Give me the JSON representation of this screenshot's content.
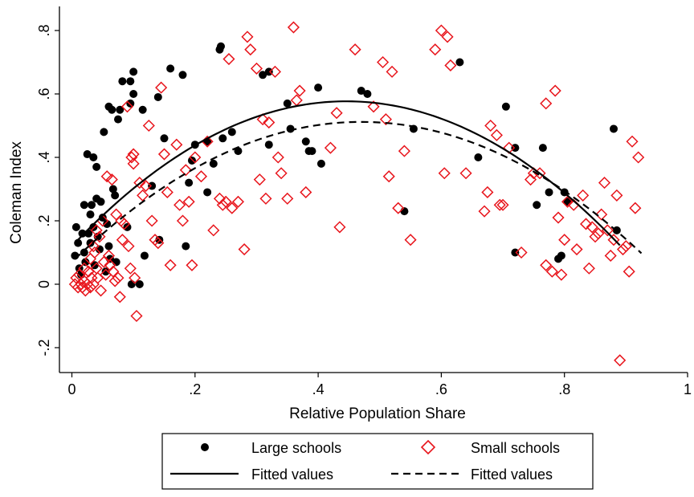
{
  "chart_data": {
    "type": "scatter",
    "xlabel": "Relative Population Share",
    "ylabel": "Coleman Index",
    "xlim": [
      0,
      1
    ],
    "ylim": [
      -0.26,
      0.86
    ],
    "x_ticks": [
      {
        "value": 0,
        "label": "0"
      },
      {
        "value": 0.2,
        "label": ".2"
      },
      {
        "value": 0.4,
        "label": ".4"
      },
      {
        "value": 0.6,
        "label": ".6"
      },
      {
        "value": 0.8,
        "label": ".8"
      },
      {
        "value": 1,
        "label": "1"
      }
    ],
    "y_ticks": [
      {
        "value": -0.2,
        "label": "-.2"
      },
      {
        "value": 0,
        "label": "0"
      },
      {
        "value": 0.2,
        "label": ".2"
      },
      {
        "value": 0.4,
        "label": ".4"
      },
      {
        "value": 0.6,
        "label": ".6"
      },
      {
        "value": 0.8,
        "label": ".8"
      }
    ],
    "grid": false,
    "legend_position": "bottom",
    "legend": {
      "large_label": "Large schools",
      "small_label": "Small schools",
      "fit_large_label": "Fitted values",
      "fit_small_label": "Fitted values"
    },
    "series": [
      {
        "name": "Large schools",
        "marker": "filled-circle",
        "color": "#000000",
        "points": [
          [
            0.005,
            0.09
          ],
          [
            0.007,
            0.18
          ],
          [
            0.01,
            0.13
          ],
          [
            0.012,
            0.05
          ],
          [
            0.015,
            0.03
          ],
          [
            0.017,
            0.16
          ],
          [
            0.02,
            0.25
          ],
          [
            0.02,
            0.1
          ],
          [
            0.022,
            0.07
          ],
          [
            0.025,
            0.41
          ],
          [
            0.027,
            0.16
          ],
          [
            0.03,
            0.22
          ],
          [
            0.03,
            0.13
          ],
          [
            0.032,
            0.25
          ],
          [
            0.035,
            0.4
          ],
          [
            0.035,
            0.18
          ],
          [
            0.037,
            0.06
          ],
          [
            0.04,
            0.37
          ],
          [
            0.04,
            0.27
          ],
          [
            0.042,
            0.15
          ],
          [
            0.045,
            0.11
          ],
          [
            0.047,
            0.26
          ],
          [
            0.05,
            0.21
          ],
          [
            0.052,
            0.48
          ],
          [
            0.055,
            0.04
          ],
          [
            0.057,
            0.19
          ],
          [
            0.06,
            0.56
          ],
          [
            0.06,
            0.12
          ],
          [
            0.062,
            0.08
          ],
          [
            0.065,
            0.55
          ],
          [
            0.067,
            0.3
          ],
          [
            0.07,
            0.28
          ],
          [
            0.072,
            0.07
          ],
          [
            0.075,
            0.52
          ],
          [
            0.078,
            0.55
          ],
          [
            0.082,
            0.64
          ],
          [
            0.09,
            0.18
          ],
          [
            0.095,
            0.64
          ],
          [
            0.095,
            0.57
          ],
          [
            0.097,
            0.0
          ],
          [
            0.1,
            0.67
          ],
          [
            0.1,
            0.6
          ],
          [
            0.11,
            0.0
          ],
          [
            0.115,
            0.55
          ],
          [
            0.118,
            0.09
          ],
          [
            0.13,
            0.31
          ],
          [
            0.14,
            0.59
          ],
          [
            0.142,
            0.14
          ],
          [
            0.15,
            0.46
          ],
          [
            0.16,
            0.68
          ],
          [
            0.18,
            0.66
          ],
          [
            0.185,
            0.12
          ],
          [
            0.19,
            0.32
          ],
          [
            0.195,
            0.39
          ],
          [
            0.2,
            0.44
          ],
          [
            0.22,
            0.45
          ],
          [
            0.22,
            0.29
          ],
          [
            0.23,
            0.38
          ],
          [
            0.24,
            0.74
          ],
          [
            0.242,
            0.75
          ],
          [
            0.245,
            0.46
          ],
          [
            0.26,
            0.48
          ],
          [
            0.27,
            0.42
          ],
          [
            0.31,
            0.66
          ],
          [
            0.32,
            0.67
          ],
          [
            0.32,
            0.44
          ],
          [
            0.35,
            0.57
          ],
          [
            0.355,
            0.49
          ],
          [
            0.38,
            0.45
          ],
          [
            0.385,
            0.42
          ],
          [
            0.39,
            0.42
          ],
          [
            0.4,
            0.62
          ],
          [
            0.405,
            0.38
          ],
          [
            0.47,
            0.61
          ],
          [
            0.48,
            0.6
          ],
          [
            0.54,
            0.23
          ],
          [
            0.555,
            0.49
          ],
          [
            0.63,
            0.7
          ],
          [
            0.66,
            0.4
          ],
          [
            0.705,
            0.56
          ],
          [
            0.72,
            0.43
          ],
          [
            0.72,
            0.1
          ],
          [
            0.755,
            0.25
          ],
          [
            0.765,
            0.43
          ],
          [
            0.775,
            0.29
          ],
          [
            0.79,
            0.08
          ],
          [
            0.795,
            0.09
          ],
          [
            0.8,
            0.29
          ],
          [
            0.805,
            0.26
          ],
          [
            0.88,
            0.49
          ],
          [
            0.885,
            0.17
          ]
        ]
      },
      {
        "name": "Small schools",
        "marker": "hollow-diamond",
        "color": "#e8141b",
        "points": [
          [
            0.005,
            0.0
          ],
          [
            0.007,
            0.02
          ],
          [
            0.01,
            -0.01
          ],
          [
            0.012,
            0.03
          ],
          [
            0.015,
            0.0
          ],
          [
            0.017,
            -0.01
          ],
          [
            0.02,
            0.01
          ],
          [
            0.02,
            0.05
          ],
          [
            0.022,
            -0.02
          ],
          [
            0.025,
            0.0
          ],
          [
            0.027,
            0.04
          ],
          [
            0.03,
            0.08
          ],
          [
            0.03,
            -0.01
          ],
          [
            0.032,
            0.02
          ],
          [
            0.035,
            0.12
          ],
          [
            0.035,
            0.0
          ],
          [
            0.037,
            0.1
          ],
          [
            0.04,
            0.05
          ],
          [
            0.04,
            0.17
          ],
          [
            0.042,
            0.02
          ],
          [
            0.045,
            0.15
          ],
          [
            0.047,
            -0.02
          ],
          [
            0.05,
            0.2
          ],
          [
            0.052,
            0.07
          ],
          [
            0.055,
            0.03
          ],
          [
            0.057,
            0.34
          ],
          [
            0.06,
            0.09
          ],
          [
            0.062,
            0.06
          ],
          [
            0.065,
            0.33
          ],
          [
            0.067,
            0.04
          ],
          [
            0.07,
            0.01
          ],
          [
            0.072,
            0.22
          ],
          [
            0.075,
            0.02
          ],
          [
            0.078,
            -0.04
          ],
          [
            0.08,
            0.2
          ],
          [
            0.082,
            0.14
          ],
          [
            0.085,
            0.19
          ],
          [
            0.09,
            0.56
          ],
          [
            0.092,
            0.12
          ],
          [
            0.095,
            0.05
          ],
          [
            0.097,
            0.4
          ],
          [
            0.1,
            0.41
          ],
          [
            0.1,
            0.38
          ],
          [
            0.102,
            0.02
          ],
          [
            0.105,
            -0.1
          ],
          [
            0.11,
            0.32
          ],
          [
            0.115,
            0.28
          ],
          [
            0.12,
            0.31
          ],
          [
            0.125,
            0.5
          ],
          [
            0.13,
            0.2
          ],
          [
            0.135,
            0.14
          ],
          [
            0.14,
            0.13
          ],
          [
            0.145,
            0.62
          ],
          [
            0.15,
            0.41
          ],
          [
            0.155,
            0.29
          ],
          [
            0.16,
            0.06
          ],
          [
            0.17,
            0.44
          ],
          [
            0.175,
            0.25
          ],
          [
            0.18,
            0.2
          ],
          [
            0.185,
            0.36
          ],
          [
            0.19,
            0.26
          ],
          [
            0.195,
            0.06
          ],
          [
            0.2,
            0.4
          ],
          [
            0.21,
            0.34
          ],
          [
            0.22,
            0.45
          ],
          [
            0.23,
            0.17
          ],
          [
            0.24,
            0.27
          ],
          [
            0.245,
            0.25
          ],
          [
            0.25,
            0.26
          ],
          [
            0.255,
            0.71
          ],
          [
            0.26,
            0.24
          ],
          [
            0.27,
            0.26
          ],
          [
            0.28,
            0.11
          ],
          [
            0.285,
            0.78
          ],
          [
            0.29,
            0.74
          ],
          [
            0.3,
            0.68
          ],
          [
            0.305,
            0.33
          ],
          [
            0.31,
            0.52
          ],
          [
            0.315,
            0.27
          ],
          [
            0.32,
            0.51
          ],
          [
            0.33,
            0.67
          ],
          [
            0.335,
            0.4
          ],
          [
            0.34,
            0.35
          ],
          [
            0.35,
            0.27
          ],
          [
            0.36,
            0.81
          ],
          [
            0.365,
            0.58
          ],
          [
            0.37,
            0.61
          ],
          [
            0.38,
            0.29
          ],
          [
            0.42,
            0.43
          ],
          [
            0.43,
            0.54
          ],
          [
            0.435,
            0.18
          ],
          [
            0.46,
            0.74
          ],
          [
            0.49,
            0.56
          ],
          [
            0.505,
            0.7
          ],
          [
            0.51,
            0.52
          ],
          [
            0.515,
            0.34
          ],
          [
            0.52,
            0.67
          ],
          [
            0.53,
            0.24
          ],
          [
            0.54,
            0.42
          ],
          [
            0.55,
            0.14
          ],
          [
            0.59,
            0.74
          ],
          [
            0.6,
            0.8
          ],
          [
            0.605,
            0.35
          ],
          [
            0.61,
            0.78
          ],
          [
            0.615,
            0.69
          ],
          [
            0.64,
            0.35
          ],
          [
            0.67,
            0.23
          ],
          [
            0.675,
            0.29
          ],
          [
            0.68,
            0.5
          ],
          [
            0.69,
            0.47
          ],
          [
            0.695,
            0.25
          ],
          [
            0.7,
            0.25
          ],
          [
            0.71,
            0.43
          ],
          [
            0.73,
            0.1
          ],
          [
            0.745,
            0.33
          ],
          [
            0.75,
            0.35
          ],
          [
            0.76,
            0.35
          ],
          [
            0.77,
            0.57
          ],
          [
            0.77,
            0.06
          ],
          [
            0.78,
            0.04
          ],
          [
            0.785,
            0.61
          ],
          [
            0.79,
            0.21
          ],
          [
            0.795,
            0.03
          ],
          [
            0.8,
            0.14
          ],
          [
            0.805,
            0.26
          ],
          [
            0.815,
            0.25
          ],
          [
            0.82,
            0.11
          ],
          [
            0.83,
            0.28
          ],
          [
            0.835,
            0.19
          ],
          [
            0.84,
            0.05
          ],
          [
            0.845,
            0.18
          ],
          [
            0.85,
            0.15
          ],
          [
            0.855,
            0.16
          ],
          [
            0.86,
            0.22
          ],
          [
            0.865,
            0.32
          ],
          [
            0.87,
            0.17
          ],
          [
            0.875,
            0.09
          ],
          [
            0.88,
            0.14
          ],
          [
            0.885,
            0.28
          ],
          [
            0.89,
            -0.24
          ],
          [
            0.895,
            0.11
          ],
          [
            0.9,
            0.12
          ],
          [
            0.905,
            0.04
          ],
          [
            0.91,
            0.45
          ],
          [
            0.915,
            0.24
          ],
          [
            0.92,
            0.4
          ]
        ]
      },
      {
        "name": "Fitted values",
        "line": "solid",
        "color": "#000000",
        "fit": "quadratic",
        "coef": [
          0.12,
          2.05,
          -2.3
        ],
        "x_range": [
          0.005,
          0.89
        ]
      },
      {
        "name": "Fitted values",
        "line": "dashed",
        "color": "#000000",
        "fit": "quadratic",
        "coef": [
          0.07,
          1.88,
          -2.0
        ],
        "x_range": [
          0.005,
          0.925
        ]
      }
    ]
  }
}
